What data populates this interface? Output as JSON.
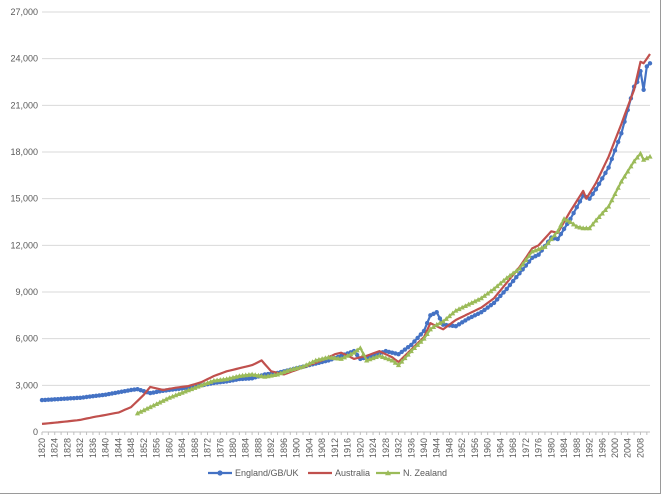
{
  "chart_data": {
    "type": "line",
    "title": "",
    "xlabel": "",
    "ylabel": "",
    "x_range": [
      1820,
      2011
    ],
    "ylim": [
      0,
      27000
    ],
    "yticks": [
      0,
      3000,
      6000,
      9000,
      12000,
      15000,
      18000,
      21000,
      24000,
      27000
    ],
    "ytick_labels": [
      "0",
      "3,000",
      "6,000",
      "9,000",
      "12,000",
      "15,000",
      "18,000",
      "21,000",
      "24,000",
      "27,000"
    ],
    "xtick_labels": [
      "1820",
      "1824",
      "1828",
      "1832",
      "1836",
      "1840",
      "1844",
      "1848",
      "1852",
      "1856",
      "1860",
      "1864",
      "1868",
      "1872",
      "1876",
      "1880",
      "1884",
      "1888",
      "1892",
      "1896",
      "1900",
      "1904",
      "1908",
      "1912",
      "1916",
      "1920",
      "1924",
      "1928",
      "1932",
      "1936",
      "1940",
      "1944",
      "1948",
      "1952",
      "1956",
      "1960",
      "1964",
      "1968",
      "1972",
      "1976",
      "1980",
      "1984",
      "1988",
      "1992",
      "1996",
      "2000",
      "2004",
      "2008"
    ],
    "grid": "horizontal",
    "legend_position": "bottom",
    "series": [
      {
        "name": "England/GB/UK",
        "color": "#4472C4",
        "marker": "circle",
        "points": [
          [
            1820,
            2050
          ],
          [
            1824,
            2100
          ],
          [
            1828,
            2150
          ],
          [
            1832,
            2200
          ],
          [
            1836,
            2300
          ],
          [
            1840,
            2400
          ],
          [
            1844,
            2550
          ],
          [
            1848,
            2700
          ],
          [
            1850,
            2750
          ],
          [
            1854,
            2500
          ],
          [
            1858,
            2650
          ],
          [
            1862,
            2750
          ],
          [
            1866,
            2850
          ],
          [
            1870,
            3000
          ],
          [
            1874,
            3150
          ],
          [
            1878,
            3250
          ],
          [
            1882,
            3400
          ],
          [
            1886,
            3450
          ],
          [
            1890,
            3700
          ],
          [
            1894,
            3800
          ],
          [
            1898,
            4000
          ],
          [
            1902,
            4200
          ],
          [
            1906,
            4400
          ],
          [
            1910,
            4600
          ],
          [
            1914,
            4900
          ],
          [
            1918,
            5200
          ],
          [
            1920,
            4700
          ],
          [
            1924,
            4900
          ],
          [
            1928,
            5200
          ],
          [
            1932,
            5000
          ],
          [
            1936,
            5600
          ],
          [
            1940,
            6500
          ],
          [
            1942,
            7500
          ],
          [
            1944,
            7700
          ],
          [
            1946,
            6900
          ],
          [
            1950,
            6800
          ],
          [
            1954,
            7300
          ],
          [
            1958,
            7700
          ],
          [
            1962,
            8300
          ],
          [
            1966,
            9200
          ],
          [
            1970,
            10200
          ],
          [
            1974,
            11200
          ],
          [
            1976,
            11400
          ],
          [
            1980,
            12500
          ],
          [
            1982,
            12400
          ],
          [
            1986,
            13700
          ],
          [
            1990,
            15200
          ],
          [
            1992,
            15000
          ],
          [
            1994,
            15600
          ],
          [
            1998,
            17000
          ],
          [
            2002,
            19200
          ],
          [
            2006,
            22200
          ],
          [
            2007,
            22500
          ],
          [
            2008,
            23200
          ],
          [
            2009,
            22000
          ],
          [
            2010,
            23500
          ],
          [
            2011,
            23700
          ]
        ]
      },
      {
        "name": "Australia",
        "color": "#C0504D",
        "marker": "none",
        "points": [
          [
            1820,
            520
          ],
          [
            1824,
            600
          ],
          [
            1828,
            680
          ],
          [
            1832,
            780
          ],
          [
            1836,
            950
          ],
          [
            1840,
            1100
          ],
          [
            1844,
            1250
          ],
          [
            1848,
            1600
          ],
          [
            1850,
            2000
          ],
          [
            1852,
            2400
          ],
          [
            1854,
            2900
          ],
          [
            1858,
            2700
          ],
          [
            1862,
            2850
          ],
          [
            1866,
            2950
          ],
          [
            1870,
            3200
          ],
          [
            1874,
            3600
          ],
          [
            1878,
            3900
          ],
          [
            1882,
            4100
          ],
          [
            1886,
            4300
          ],
          [
            1889,
            4600
          ],
          [
            1892,
            3900
          ],
          [
            1896,
            3700
          ],
          [
            1900,
            4000
          ],
          [
            1904,
            4300
          ],
          [
            1908,
            4600
          ],
          [
            1912,
            5000
          ],
          [
            1914,
            5100
          ],
          [
            1918,
            4700
          ],
          [
            1922,
            4900
          ],
          [
            1926,
            5200
          ],
          [
            1930,
            4800
          ],
          [
            1932,
            4500
          ],
          [
            1936,
            5300
          ],
          [
            1940,
            6100
          ],
          [
            1942,
            7000
          ],
          [
            1944,
            6800
          ],
          [
            1946,
            6600
          ],
          [
            1950,
            7200
          ],
          [
            1954,
            7600
          ],
          [
            1958,
            8000
          ],
          [
            1962,
            8600
          ],
          [
            1966,
            9600
          ],
          [
            1970,
            10600
          ],
          [
            1974,
            11800
          ],
          [
            1976,
            12000
          ],
          [
            1980,
            12900
          ],
          [
            1982,
            12800
          ],
          [
            1986,
            14200
          ],
          [
            1990,
            15500
          ],
          [
            1991,
            15000
          ],
          [
            1994,
            16000
          ],
          [
            1998,
            17700
          ],
          [
            2002,
            19800
          ],
          [
            2006,
            22000
          ],
          [
            2008,
            23800
          ],
          [
            2009,
            23700
          ],
          [
            2011,
            24300
          ]
        ]
      },
      {
        "name": "N. Zealand",
        "color": "#9BBB59",
        "marker": "triangle",
        "points": [
          [
            1850,
            1200
          ],
          [
            1860,
            2200
          ],
          [
            1870,
            3000
          ],
          [
            1874,
            3300
          ],
          [
            1878,
            3400
          ],
          [
            1882,
            3600
          ],
          [
            1886,
            3700
          ],
          [
            1890,
            3550
          ],
          [
            1894,
            3700
          ],
          [
            1898,
            4000
          ],
          [
            1902,
            4200
          ],
          [
            1906,
            4600
          ],
          [
            1910,
            4800
          ],
          [
            1914,
            4700
          ],
          [
            1918,
            5100
          ],
          [
            1920,
            5400
          ],
          [
            1922,
            4600
          ],
          [
            1926,
            4900
          ],
          [
            1930,
            4600
          ],
          [
            1932,
            4300
          ],
          [
            1936,
            5200
          ],
          [
            1940,
            6000
          ],
          [
            1942,
            6600
          ],
          [
            1944,
            6900
          ],
          [
            1946,
            7100
          ],
          [
            1950,
            7800
          ],
          [
            1954,
            8200
          ],
          [
            1958,
            8600
          ],
          [
            1962,
            9200
          ],
          [
            1966,
            9900
          ],
          [
            1970,
            10500
          ],
          [
            1974,
            11600
          ],
          [
            1978,
            11900
          ],
          [
            1982,
            12900
          ],
          [
            1984,
            13700
          ],
          [
            1986,
            13500
          ],
          [
            1988,
            13200
          ],
          [
            1990,
            13100
          ],
          [
            1992,
            13100
          ],
          [
            1994,
            13600
          ],
          [
            1998,
            14500
          ],
          [
            2002,
            16100
          ],
          [
            2006,
            17400
          ],
          [
            2008,
            17900
          ],
          [
            2009,
            17500
          ],
          [
            2011,
            17700
          ]
        ]
      }
    ]
  }
}
